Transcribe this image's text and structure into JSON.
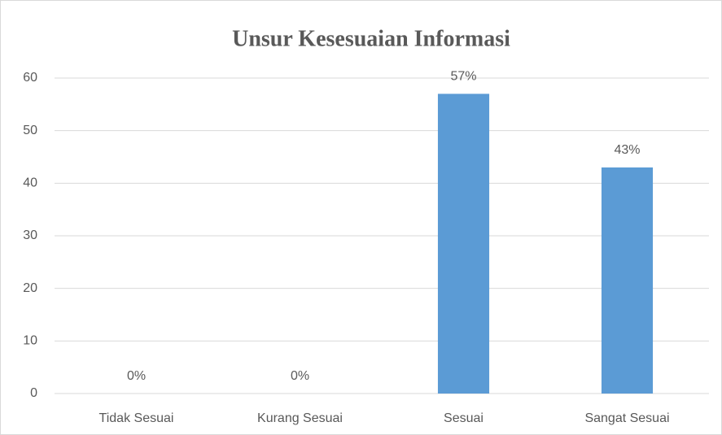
{
  "chart_data": {
    "type": "bar",
    "title": "Unsur Kesesuaian Informasi",
    "categories": [
      "Tidak Sesuai",
      "Kurang Sesuai",
      "Sesuai",
      "Sangat Sesuai"
    ],
    "values": [
      0,
      0,
      57,
      43
    ],
    "value_labels": [
      "0%",
      "0%",
      "57%",
      "43%"
    ],
    "color": "#5b9bd5",
    "ylim": [
      0,
      60
    ],
    "yticks": [
      0,
      10,
      20,
      30,
      40,
      50,
      60
    ],
    "grid": true
  }
}
